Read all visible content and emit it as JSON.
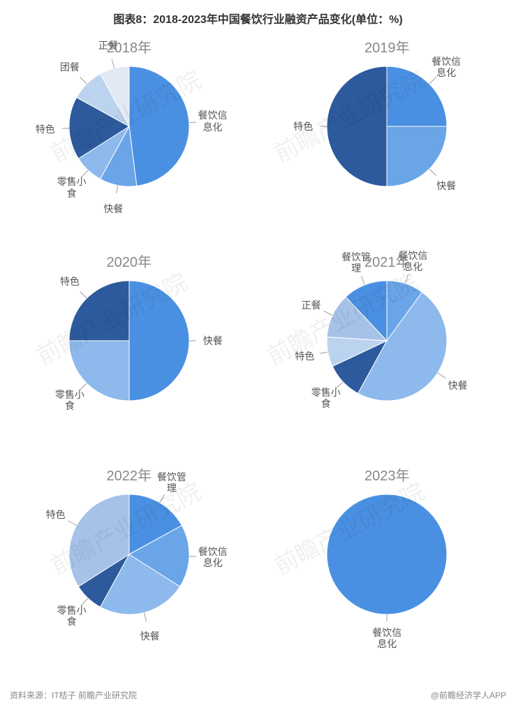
{
  "title": "图表8：2018-2023年中国餐饮行业融资产品变化(单位：%)",
  "title_fontsize": 16,
  "year_title_fontsize": 20,
  "label_fontsize": 14,
  "pie_radius": 86,
  "background_color": "#ffffff",
  "footer_left": "资料来源：IT桔子 前瞻产业研究院",
  "footer_right": "@前瞻经济学人APP",
  "watermark_text": "前瞻产业研究院",
  "charts": [
    {
      "year": "2018年",
      "slices": [
        {
          "label": "餐饮信\n息化",
          "value": 48,
          "color": "#4a90e2"
        },
        {
          "label": "快餐",
          "value": 10,
          "color": "#6aa5e8"
        },
        {
          "label": "零售小\n食",
          "value": 8,
          "color": "#8db9ec"
        },
        {
          "label": "特色",
          "value": 17,
          "color": "#2d5a9c"
        },
        {
          "label": "团餐",
          "value": 9,
          "color": "#bcd3ef"
        },
        {
          "label": "正餐",
          "value": 8,
          "color": "#e2e9f3"
        }
      ]
    },
    {
      "year": "2019年",
      "slices": [
        {
          "label": "餐饮信\n息化",
          "value": 25,
          "color": "#4a90e2"
        },
        {
          "label": "快餐",
          "value": 25,
          "color": "#6aa5e8"
        },
        {
          "label": "特色",
          "value": 50,
          "color": "#2d5a9c"
        }
      ]
    },
    {
      "year": "2020年",
      "slices": [
        {
          "label": "快餐",
          "value": 50,
          "color": "#4a90e2"
        },
        {
          "label": "零售小\n食",
          "value": 25,
          "color": "#8db9ec"
        },
        {
          "label": "特色",
          "value": 25,
          "color": "#2d5a9c"
        }
      ]
    },
    {
      "year": "2021年",
      "slices": [
        {
          "label": "餐饮信\n息化",
          "value": 10,
          "color": "#6aa5e8"
        },
        {
          "label": "快餐",
          "value": 48,
          "color": "#8db9ec"
        },
        {
          "label": "零售小\n食",
          "value": 10,
          "color": "#2d5a9c"
        },
        {
          "label": "特色",
          "value": 8,
          "color": "#bcd3ef"
        },
        {
          "label": "正餐",
          "value": 12,
          "color": "#a7c2e8"
        },
        {
          "label": "餐饮管\n理",
          "value": 12,
          "color": "#4a90e2"
        }
      ]
    },
    {
      "year": "2022年",
      "slices": [
        {
          "label": "餐饮管\n理",
          "value": 17,
          "color": "#4a90e2"
        },
        {
          "label": "餐饮信\n息化",
          "value": 17,
          "color": "#6aa5e8"
        },
        {
          "label": "快餐",
          "value": 24,
          "color": "#8db9ec"
        },
        {
          "label": "零售小\n食",
          "value": 8,
          "color": "#2d5a9c"
        },
        {
          "label": "特色",
          "value": 34,
          "color": "#a7c2e8"
        }
      ]
    },
    {
      "year": "2023年",
      "slices": [
        {
          "label": "餐饮信\n息化",
          "value": 100,
          "color": "#4a90e2"
        }
      ]
    }
  ]
}
